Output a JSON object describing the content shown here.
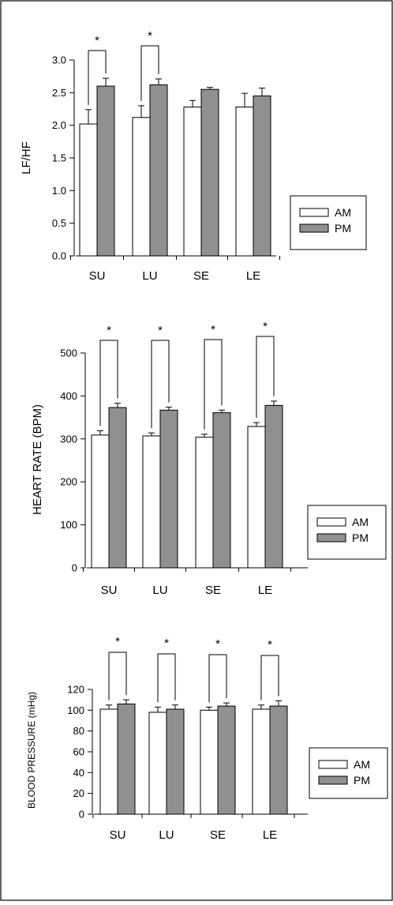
{
  "legend": [
    {
      "name": "AM",
      "color": "#ffffff"
    },
    {
      "name": "PM",
      "color": "#909090"
    }
  ],
  "significance_marker": "*",
  "chart_data": [
    {
      "type": "bar",
      "categories": [
        "SU",
        "LU",
        "SE",
        "LE"
      ],
      "ylabel": "LF/HF",
      "ylim": [
        0,
        3.0
      ],
      "yticks": [
        0.0,
        0.5,
        1.0,
        1.5,
        2.0,
        2.5,
        3.0
      ],
      "ytick_labels": [
        "0.0",
        "0.5",
        "1.0",
        "1.5",
        "2.0",
        "2.5",
        "3.0"
      ],
      "series": [
        {
          "name": "AM",
          "values": [
            2.02,
            2.12,
            2.28,
            2.28
          ],
          "errors": [
            0.22,
            0.18,
            0.1,
            0.21
          ]
        },
        {
          "name": "PM",
          "values": [
            2.6,
            2.62,
            2.55,
            2.45
          ],
          "errors": [
            0.12,
            0.09,
            0.03,
            0.12
          ]
        }
      ],
      "significant": [
        true,
        true,
        false,
        false
      ]
    },
    {
      "type": "bar",
      "categories": [
        "SU",
        "LU",
        "SE",
        "LE"
      ],
      "ylabel": "HEART RATE (BPM)",
      "ylim": [
        0,
        500
      ],
      "yticks": [
        0,
        100,
        200,
        300,
        400,
        500
      ],
      "ytick_labels": [
        "0",
        "100",
        "200",
        "300",
        "400",
        "500"
      ],
      "series": [
        {
          "name": "AM",
          "values": [
            309,
            307,
            304,
            329
          ],
          "errors": [
            10,
            7,
            7,
            9
          ]
        },
        {
          "name": "PM",
          "values": [
            373,
            367,
            361,
            378
          ],
          "errors": [
            10,
            7,
            6,
            10
          ]
        }
      ],
      "significant": [
        true,
        true,
        true,
        true
      ]
    },
    {
      "type": "bar",
      "categories": [
        "SU",
        "LU",
        "SE",
        "LE"
      ],
      "ylabel": "BLOOD PRESSURE (mHg)",
      "ylim": [
        0,
        120
      ],
      "yticks": [
        0,
        20,
        40,
        60,
        80,
        100,
        120
      ],
      "ytick_labels": [
        "0",
        "20",
        "40",
        "60",
        "80",
        "100",
        "120"
      ],
      "series": [
        {
          "name": "AM",
          "values": [
            101,
            98,
            100,
            101
          ],
          "errors": [
            4,
            5,
            3,
            4
          ]
        },
        {
          "name": "PM",
          "values": [
            106,
            101,
            104,
            104
          ],
          "errors": [
            4,
            4,
            3,
            5
          ]
        }
      ],
      "significant": [
        true,
        true,
        true,
        true
      ]
    }
  ]
}
